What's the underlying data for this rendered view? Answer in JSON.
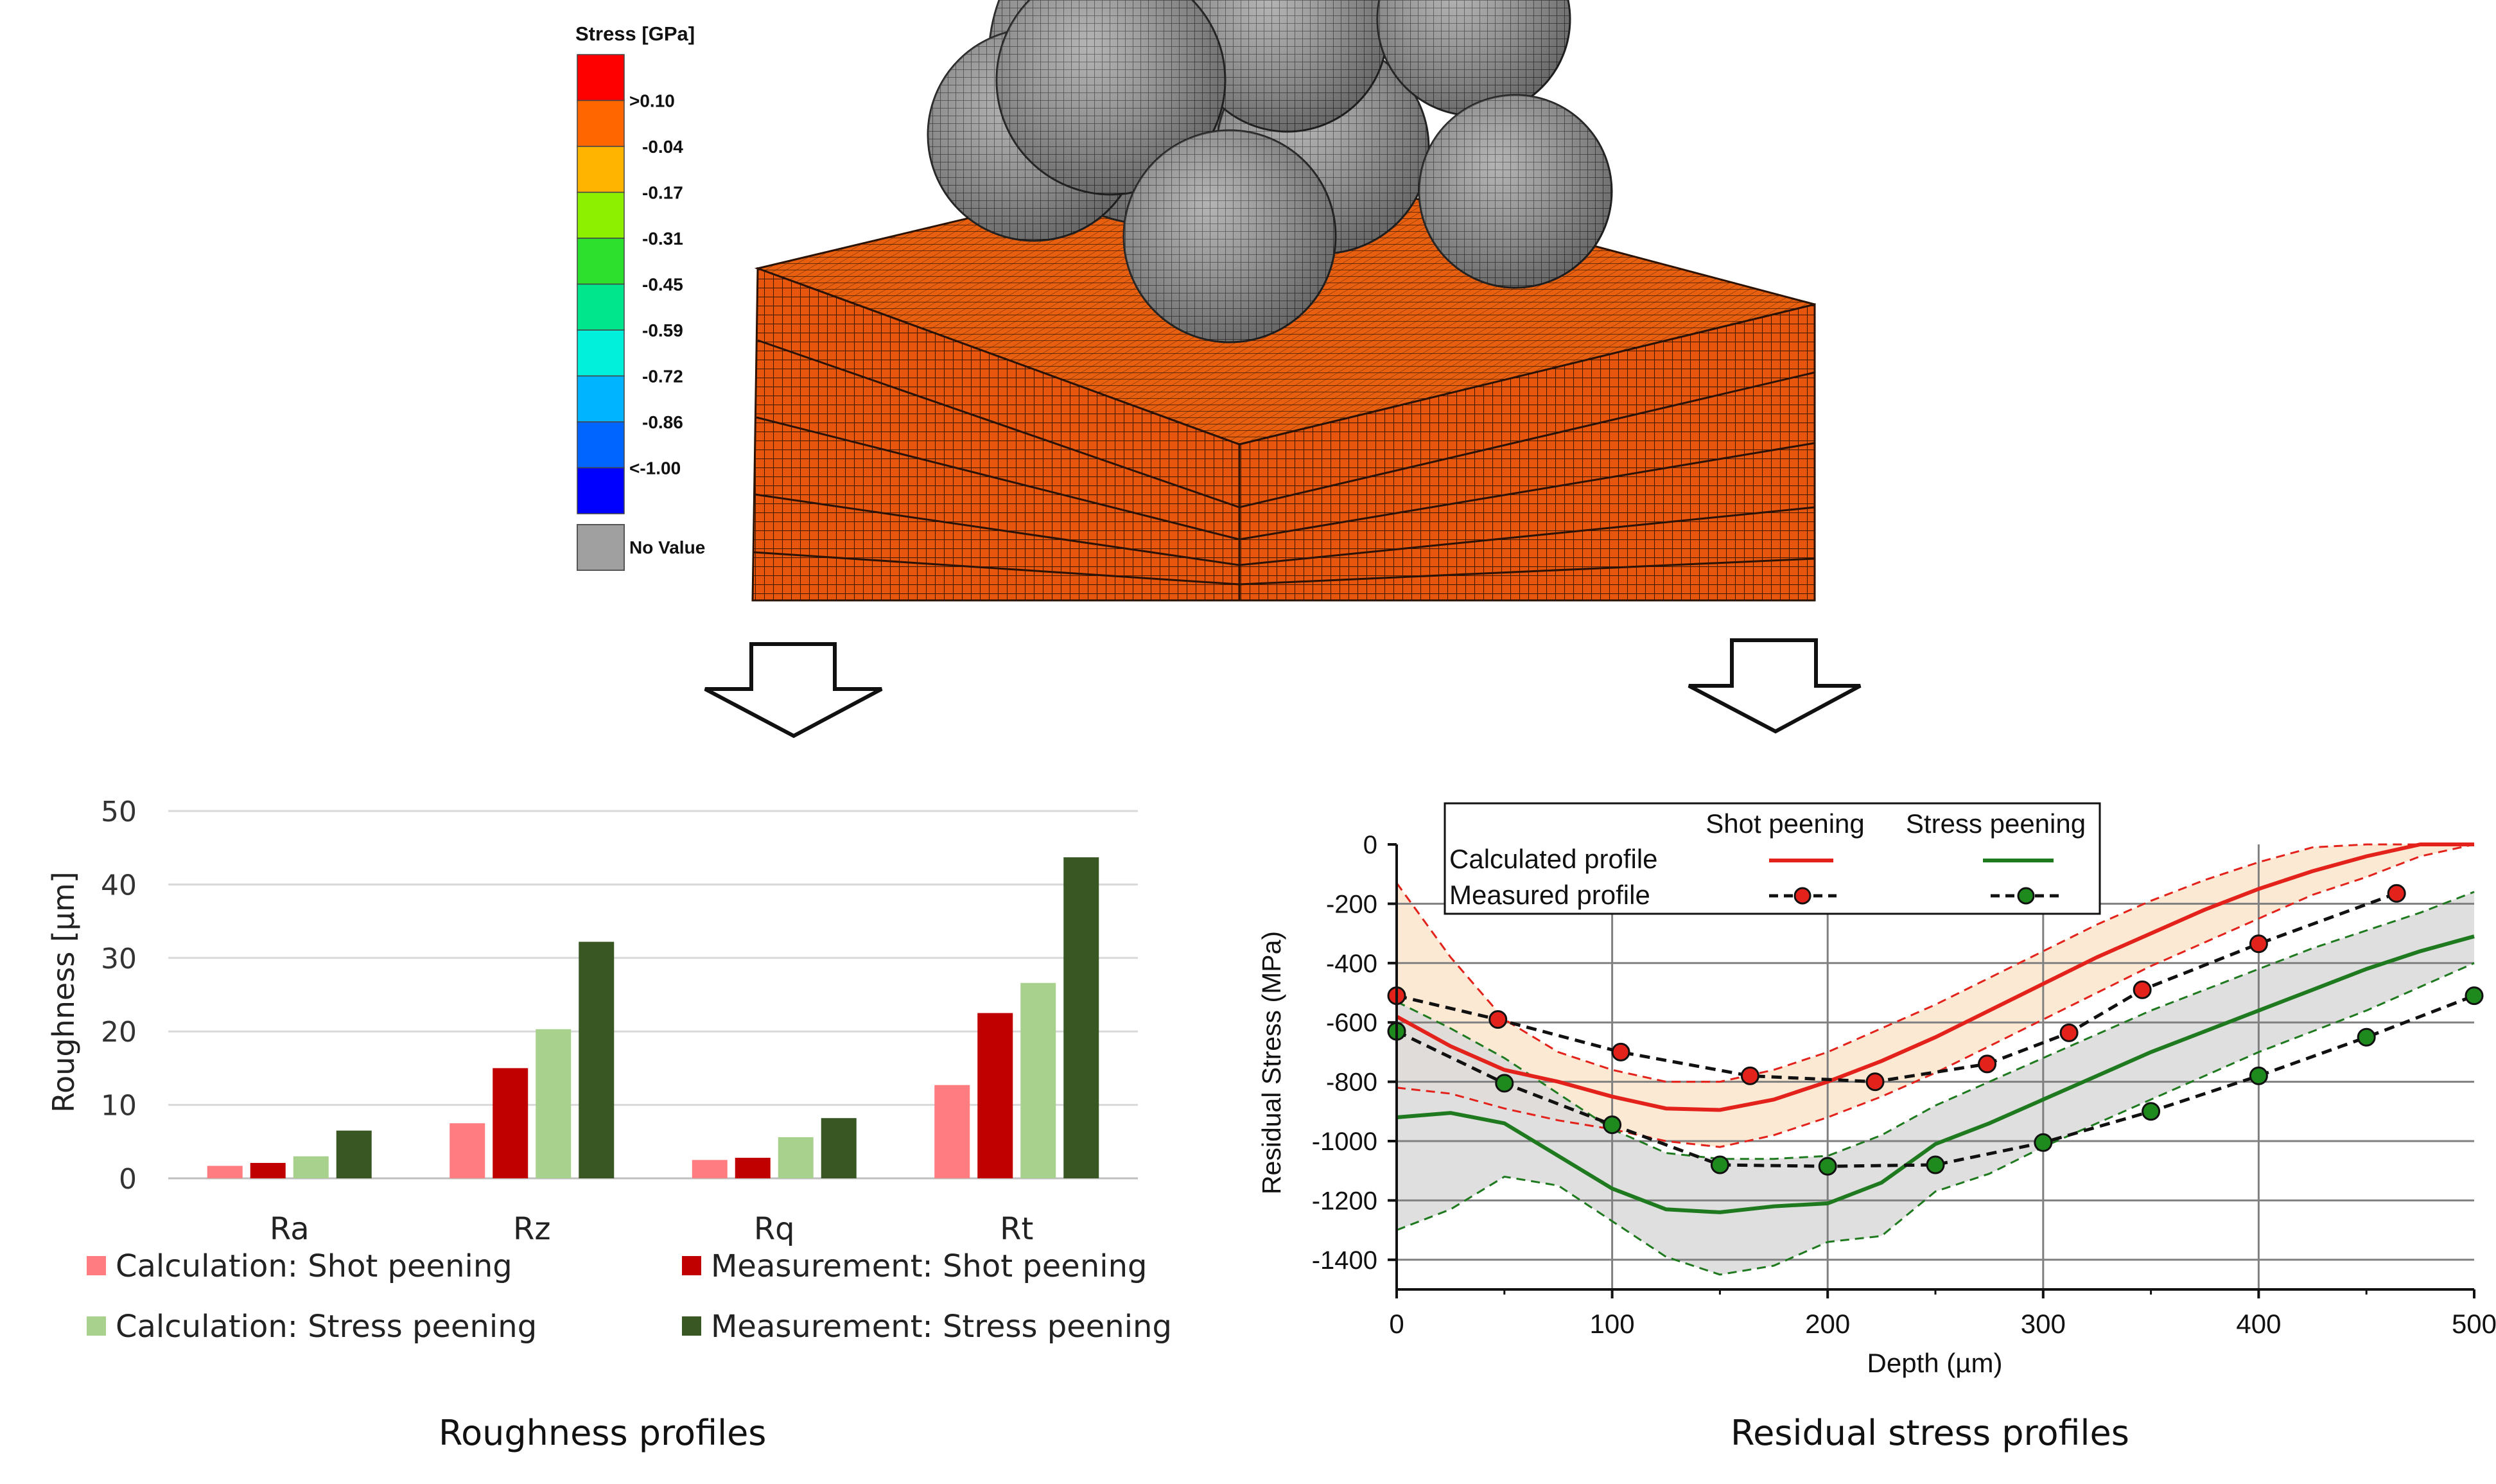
{
  "colors": {
    "mesh_block": "#e8560d",
    "shot_calc": "#ff7c80",
    "shot_meas": "#c00000",
    "stress_calc": "#a9d18e",
    "stress_meas": "#385723",
    "line_shot": "#e3221b",
    "line_stress": "#1f7a1f",
    "band_shot": "#fbe5cc",
    "band_stress": "#d9d9d9"
  },
  "fem": {
    "legend_title": "Stress [GPa]",
    "legend_labels": [
      ">0.10",
      "-0.04",
      "-0.17",
      "-0.31",
      "-0.45",
      "-0.59",
      "-0.72",
      "-0.86",
      "<-1.00"
    ],
    "legend_colors": [
      "#ff0000",
      "#ff6600",
      "#ffb400",
      "#8cf000",
      "#2ee02e",
      "#00e68c",
      "#00f0dc",
      "#00b4ff",
      "#0064ff",
      "#0000ff"
    ],
    "no_value_label": "No Value",
    "no_value_color": "#a0a0a0"
  },
  "captions": {
    "left": "Roughness profiles",
    "right": "Residual stress profiles"
  },
  "chart_data": [
    {
      "type": "bar",
      "title": "",
      "xlabel": "",
      "ylabel": "Roughness [µm]",
      "ylim": [
        0,
        50
      ],
      "yticks": [
        0,
        10,
        20,
        30,
        40,
        50
      ],
      "grid": true,
      "categories": [
        "Ra",
        "Rz",
        "Rq",
        "Rt"
      ],
      "series": [
        {
          "name": "Calculation: Shot peening",
          "values": [
            1.7,
            7.5,
            2.5,
            12.7
          ],
          "color": "#ff7c80"
        },
        {
          "name": "Measurement: Shot peening",
          "values": [
            2.1,
            15.0,
            2.8,
            22.5
          ],
          "color": "#c00000"
        },
        {
          "name": "Calculation: Stress peening",
          "values": [
            3.0,
            20.3,
            5.6,
            26.6
          ],
          "color": "#a9d18e"
        },
        {
          "name": "Measurement: Stress peening",
          "values": [
            6.5,
            32.2,
            8.2,
            43.7
          ],
          "color": "#385723"
        }
      ],
      "legend_position": "bottom"
    },
    {
      "type": "line",
      "title": "",
      "xlabel": "Depth (µm)",
      "ylabel": "Residual Stress (MPa)",
      "xlim": [
        0,
        500
      ],
      "ylim": [
        -1500,
        0
      ],
      "xticks": [
        0,
        100,
        200,
        300,
        400,
        500
      ],
      "yticks": [
        0,
        -200,
        -400,
        -600,
        -800,
        -1000,
        -1200,
        -1400
      ],
      "grid": true,
      "legend": {
        "col_headers": [
          "Shot peening",
          "Stress peening"
        ],
        "row_labels": [
          "Calculated profile",
          "Measured profile"
        ],
        "position": "top-left"
      },
      "series": [
        {
          "name": "Calculated profile Shot peening",
          "style": "solid",
          "x": [
            0,
            25,
            50,
            75,
            100,
            125,
            150,
            175,
            200,
            225,
            250,
            275,
            300,
            325,
            350,
            375,
            400,
            425,
            450,
            475,
            500
          ],
          "y": [
            -580,
            -680,
            -760,
            -800,
            -850,
            -890,
            -895,
            -860,
            -800,
            -730,
            -650,
            -560,
            -470,
            -380,
            -300,
            -220,
            -150,
            -90,
            -40,
            0,
            20
          ],
          "upper": [
            -130,
            -380,
            -590,
            -700,
            -760,
            -800,
            -800,
            -760,
            -700,
            -620,
            -540,
            -450,
            -360,
            -270,
            -190,
            -120,
            -60,
            -10,
            0,
            0,
            0
          ],
          "lower": [
            -820,
            -840,
            -890,
            -930,
            -960,
            -1000,
            -1020,
            -980,
            -920,
            -850,
            -770,
            -680,
            -590,
            -500,
            -410,
            -330,
            -250,
            -170,
            -110,
            -40,
            0
          ]
        },
        {
          "name": "Measured profile Shot peening",
          "style": "dashed-markers",
          "x": [
            0,
            47,
            104,
            164,
            222,
            274,
            312,
            346,
            400,
            464
          ],
          "y": [
            -510,
            -590,
            -700,
            -780,
            -800,
            -740,
            -635,
            -490,
            -335,
            -165
          ]
        },
        {
          "name": "Calculated profile Stress peening",
          "style": "solid",
          "x": [
            0,
            25,
            50,
            75,
            100,
            125,
            150,
            175,
            200,
            225,
            250,
            275,
            300,
            325,
            350,
            375,
            400,
            425,
            450,
            475,
            500
          ],
          "y": [
            -920,
            -905,
            -940,
            -1050,
            -1160,
            -1230,
            -1240,
            -1220,
            -1210,
            -1140,
            -1010,
            -940,
            -860,
            -780,
            -700,
            -630,
            -560,
            -490,
            -420,
            -360,
            -310
          ],
          "upper": [
            -530,
            -620,
            -720,
            -840,
            -960,
            -1040,
            -1060,
            -1060,
            -1050,
            -980,
            -880,
            -800,
            -720,
            -640,
            -560,
            -490,
            -420,
            -350,
            -290,
            -230,
            -160
          ],
          "lower": [
            -1300,
            -1230,
            -1120,
            -1150,
            -1270,
            -1390,
            -1450,
            -1420,
            -1340,
            -1320,
            -1170,
            -1110,
            -1020,
            -940,
            -860,
            -780,
            -700,
            -630,
            -560,
            -480,
            -400
          ]
        },
        {
          "name": "Measured profile Stress peening",
          "style": "dashed-markers",
          "x": [
            0,
            50,
            100,
            150,
            200,
            250,
            300,
            350,
            400,
            450,
            500
          ],
          "y": [
            -630,
            -805,
            -945,
            -1080,
            -1085,
            -1080,
            -1005,
            -900,
            -780,
            -650,
            -510
          ]
        }
      ]
    }
  ]
}
